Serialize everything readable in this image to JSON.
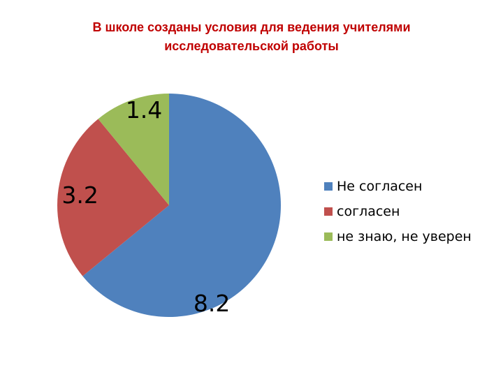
{
  "chart_data": {
    "type": "pie",
    "title_lines": [
      "В школе созданы условия для ведения учителями",
      "исследовательской работы"
    ],
    "categories": [
      "Не согласен",
      "согласен",
      "не знаю, не уверен"
    ],
    "values": [
      8.2,
      3.2,
      1.4
    ],
    "data_labels": [
      "8.2",
      "3.2",
      "1.4"
    ],
    "colors": [
      "#4f81bd",
      "#c0504d",
      "#9bbb59"
    ],
    "legend_position": "right",
    "start_angle": "12 o'clock, clockwise"
  }
}
